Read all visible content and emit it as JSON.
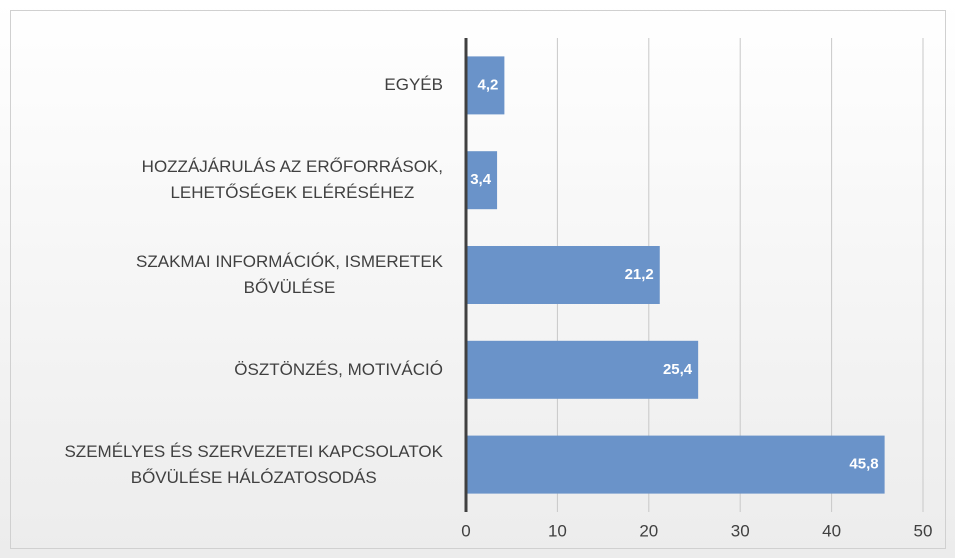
{
  "chart_data": {
    "type": "barh",
    "categories": [
      "EGYÉB",
      "HOZZÁJÁRULÁS AZ ERŐFORRÁSOK,\nLEHETŐSÉGEK ELÉRÉSÉHEZ",
      "SZAKMAI INFORMÁCIÓK, ISMERETEK\nBŐVÜLÉSE",
      "ÖSZTÖNZÉS, MOTIVÁCIÓ",
      "SZEMÉLYES ÉS SZERVEZETEI KAPCSOLATOK\nBŐVÜLÉSE HÁLÓZATOSODÁS"
    ],
    "values": [
      4.2,
      3.4,
      21.2,
      25.4,
      45.8
    ],
    "value_labels": [
      "4,2",
      "3,4",
      "21,2",
      "25,4",
      "45,8"
    ],
    "color": "#6a93c9",
    "xlim": [
      0,
      50
    ],
    "xticks": [
      0,
      10,
      20,
      30,
      40,
      50
    ],
    "grid": true
  }
}
